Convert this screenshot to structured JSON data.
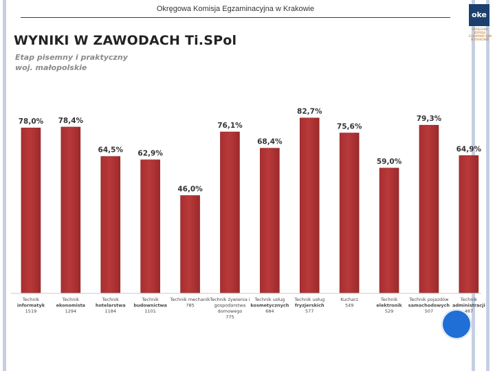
{
  "header": {
    "text": "Okręgowa Komisja Egzaminacyjna w Krakowie"
  },
  "logo": {
    "mark": "oke",
    "subtext": [
      "OKRĘGOWA",
      "KOMISJA",
      "EGZAMINACYJNA",
      "W KRAKOWIE"
    ]
  },
  "colors": {
    "bar": "#b8393a",
    "bar_edge": "#8e2324",
    "side_bars": "#c6cfe2",
    "circle": "#1f6fd6"
  },
  "chart_data": {
    "type": "bar",
    "title": "WYNIKI W ZAWODACH Ti.SPol",
    "subtitle": [
      "Etap pisemny i praktyczny",
      "woj. małopolskie"
    ],
    "ylim": [
      0,
      100
    ],
    "grid": false,
    "categories": [
      {
        "name": [
          "Technik",
          "informatyk"
        ],
        "count": "1519"
      },
      {
        "name": [
          "Technik",
          "ekonomista"
        ],
        "count": "1294"
      },
      {
        "name": [
          "Technik",
          "hotelarstwa"
        ],
        "count": "1184"
      },
      {
        "name": [
          "Technik",
          "budownictwa"
        ],
        "count": "1101"
      },
      {
        "name": [
          "Technik mechanik"
        ],
        "count": "785"
      },
      {
        "name": [
          "Technik żywienia i",
          "gospodarstwa",
          "domowego"
        ],
        "count": "775"
      },
      {
        "name": [
          "Technik usług",
          "kosmetycznych"
        ],
        "count": "684"
      },
      {
        "name": [
          "Technik usług",
          "fryzjerskich"
        ],
        "count": "577"
      },
      {
        "name": [
          "Kucharz"
        ],
        "count": "549"
      },
      {
        "name": [
          "Technik",
          "elektronik"
        ],
        "count": "529"
      },
      {
        "name": [
          "Technik pojazdów",
          "samochodowych"
        ],
        "count": "507"
      },
      {
        "name": [
          "Technik",
          "administracji"
        ],
        "count": "487"
      }
    ],
    "values": [
      78.0,
      78.4,
      64.5,
      62.9,
      46.0,
      76.1,
      68.4,
      82.7,
      75.6,
      59.0,
      79.3,
      64.9
    ],
    "labels": [
      "78,0%",
      "78,4%",
      "64,5%",
      "62,9%",
      "46,0%",
      "76,1%",
      "68,4%",
      "82,7%",
      "75,6%",
      "59,0%",
      "79,3%",
      "64,9%"
    ]
  }
}
